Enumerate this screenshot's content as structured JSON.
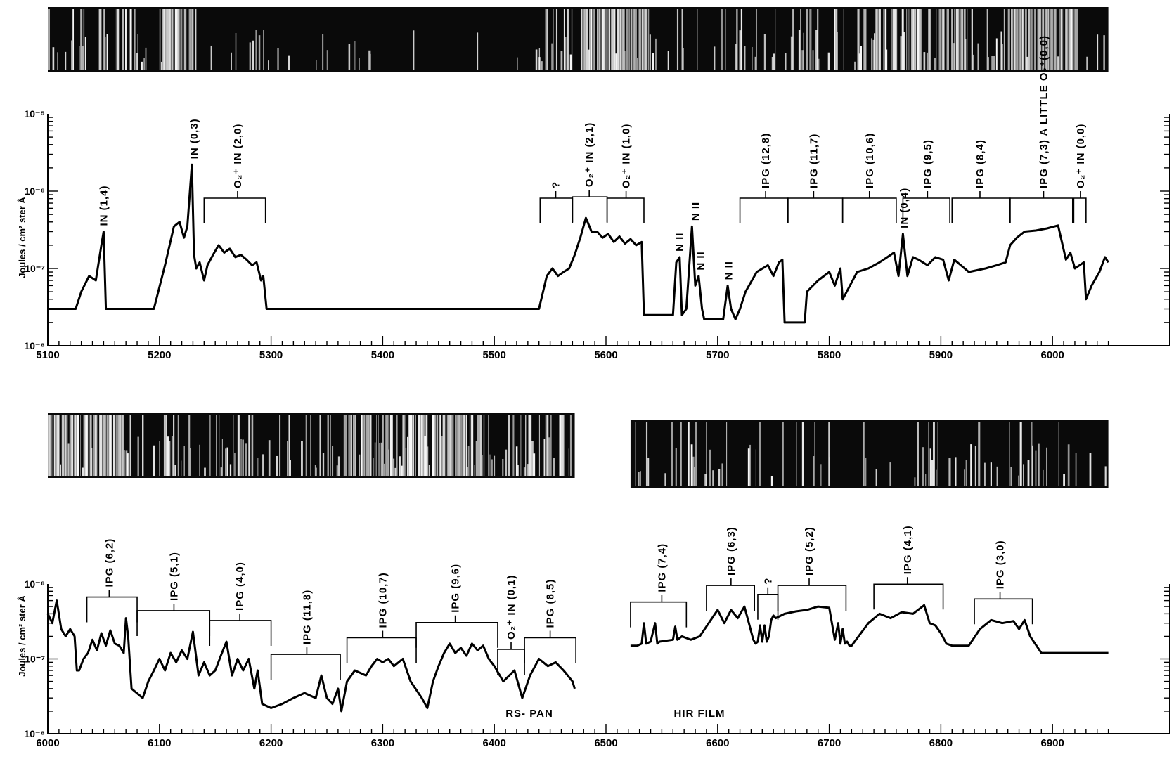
{
  "chart_data": [
    {
      "type": "line",
      "scale": "log",
      "ylabel": "Joules / cm² ster Å",
      "ylim": [
        1e-08,
        1e-05
      ],
      "xlim": [
        5100,
        6050
      ],
      "x_ticks": [
        5100,
        5200,
        5300,
        5400,
        5500,
        5600,
        5700,
        5800,
        5900,
        6000
      ],
      "y_ticks": [
        {
          "v": 1e-05,
          "label": "10⁻⁵"
        },
        {
          "v": 1e-06,
          "label": "10⁻⁶"
        },
        {
          "v": 1e-07,
          "label": "10⁻⁷"
        },
        {
          "v": 1e-08,
          "label": "10⁻⁸"
        }
      ],
      "series": [
        {
          "x": [
            5100,
            5125,
            5130,
            5137,
            5143,
            5148,
            5150,
            5152,
            5195,
            5205,
            5213,
            5218,
            5222,
            5225,
            5229,
            5231,
            5233,
            5236,
            5240,
            5243,
            5248,
            5253,
            5258,
            5263,
            5268,
            5273,
            5278,
            5283,
            5287,
            5291,
            5293,
            5296,
            5540,
            5547,
            5552,
            5557,
            5562,
            5567,
            5572,
            5577,
            5582,
            5587,
            5592,
            5597,
            5602,
            5607,
            5612,
            5617,
            5622,
            5627,
            5632,
            5634,
            5660,
            5663,
            5666,
            5668,
            5672,
            5677,
            5680,
            5683,
            5686,
            5688,
            5705,
            5709,
            5712,
            5716,
            5720,
            5725,
            5735,
            5745,
            5750,
            5755,
            5758,
            5760,
            5778,
            5780,
            5790,
            5800,
            5805,
            5810,
            5812,
            5825,
            5835,
            5845,
            5852,
            5858,
            5862,
            5866,
            5870,
            5875,
            5880,
            5888,
            5895,
            5902,
            5907,
            5912,
            5925,
            5940,
            5950,
            5958,
            5962,
            5968,
            5975,
            5985,
            5995,
            6005,
            6012,
            6016,
            6020,
            6028,
            6030,
            6035,
            6042,
            6047,
            6050
          ],
          "y": [
            3e-08,
            3e-08,
            5e-08,
            8e-08,
            7e-08,
            2e-07,
            3e-07,
            3e-08,
            3e-08,
            1.1e-07,
            3.5e-07,
            4e-07,
            2.5e-07,
            3.5e-07,
            2.2e-06,
            1.5e-07,
            1e-07,
            1.2e-07,
            7e-08,
            1.1e-07,
            1.5e-07,
            2e-07,
            1.6e-07,
            1.8e-07,
            1.4e-07,
            1.5e-07,
            1.3e-07,
            1.1e-07,
            1.2e-07,
            7e-08,
            8e-08,
            3e-08,
            3e-08,
            8e-08,
            1e-07,
            8e-08,
            9e-08,
            1e-07,
            1.5e-07,
            2.5e-07,
            4.5e-07,
            3e-07,
            3e-07,
            2.5e-07,
            2.8e-07,
            2.2e-07,
            2.6e-07,
            2.1e-07,
            2.4e-07,
            2e-07,
            2.2e-07,
            2.5e-08,
            2.5e-08,
            1.2e-07,
            1.4e-07,
            2.5e-08,
            3e-08,
            3.5e-07,
            6e-08,
            8e-08,
            3e-08,
            2.2e-08,
            2.2e-08,
            6e-08,
            3e-08,
            2.2e-08,
            3e-08,
            5e-08,
            9e-08,
            1.1e-07,
            8e-08,
            1.2e-07,
            1.3e-07,
            2e-08,
            2e-08,
            5e-08,
            7e-08,
            9e-08,
            6e-08,
            1e-07,
            4e-08,
            9e-08,
            1e-07,
            1.2e-07,
            1.4e-07,
            1.6e-07,
            8e-08,
            2.8e-07,
            8e-08,
            1.4e-07,
            1.3e-07,
            1.1e-07,
            1.4e-07,
            1.3e-07,
            7e-08,
            1.3e-07,
            9e-08,
            1e-07,
            1.1e-07,
            1.2e-07,
            2e-07,
            2.5e-07,
            3e-07,
            3.1e-07,
            3.3e-07,
            3.6e-07,
            1.3e-07,
            1.6e-07,
            1e-07,
            1.2e-07,
            4e-08,
            6e-08,
            9e-08,
            1.4e-07,
            1.2e-07
          ]
        }
      ],
      "annotations": [
        {
          "x": 5150,
          "text": "IN (1,4)"
        },
        {
          "x": 5231,
          "text": "IN (0,3)"
        },
        {
          "x": 5270,
          "from": 5240,
          "to": 5295,
          "text": "O₂⁺ IN (2,0)"
        },
        {
          "x": 5555,
          "from": 5541,
          "to": 5570,
          "text": "?"
        },
        {
          "x": 5585,
          "from": 5570,
          "to": 5601,
          "text": "O₂⁺ IN (2,1)"
        },
        {
          "x": 5618,
          "from": 5601,
          "to": 5634,
          "text": "O₂⁺ IN (1,0)"
        },
        {
          "x": 5666,
          "text": "N II"
        },
        {
          "x": 5680,
          "text": "N II"
        },
        {
          "x": 5685,
          "text": "N II"
        },
        {
          "x": 5710,
          "text": "N II"
        },
        {
          "x": 5743,
          "from": 5720,
          "to": 5763,
          "text": "IPG (12,8)"
        },
        {
          "x": 5786,
          "from": 5763,
          "to": 5812,
          "text": "IPG (11,7)"
        },
        {
          "x": 5836,
          "from": 5812,
          "to": 5860,
          "text": "IPG (10,6)"
        },
        {
          "x": 5867,
          "text": "IN (0,4)"
        },
        {
          "x": 5888,
          "from": 5866,
          "to": 5908,
          "text": "IPG (9,5)"
        },
        {
          "x": 5935,
          "from": 5910,
          "to": 5962,
          "text": "IPG (8,4)"
        },
        {
          "x": 5992,
          "from": 5962,
          "to": 6018,
          "text": "IPG (7,3) A LITTLE O₂⁺(0,0)"
        },
        {
          "x": 6025,
          "from": 6019,
          "to": 6030,
          "text": "O₂⁺ IN (0,0)"
        }
      ]
    },
    {
      "type": "line",
      "scale": "log",
      "ylabel": "Joules / cm² ster Å",
      "ylim": [
        1e-08,
        1e-06
      ],
      "xlim": [
        6000,
        6950
      ],
      "x_ticks": [
        6000,
        6100,
        6200,
        6300,
        6400,
        6500,
        6600,
        6700,
        6800,
        6900
      ],
      "y_ticks": [
        {
          "v": 1e-06,
          "label": "10⁻⁶"
        },
        {
          "v": 1e-07,
          "label": "10⁻⁷"
        },
        {
          "v": 1e-08,
          "label": "10⁻⁸"
        }
      ],
      "series": [
        {
          "name": "RS-PAN",
          "x": [
            6000,
            6004,
            6008,
            6012,
            6016,
            6020,
            6024,
            6026,
            6028,
            6032,
            6036,
            6040,
            6044,
            6048,
            6052,
            6056,
            6060,
            6064,
            6068,
            6070,
            6072,
            6075,
            6085,
            6090,
            6095,
            6100,
            6105,
            6110,
            6115,
            6120,
            6125,
            6130,
            6135,
            6140,
            6145,
            6150,
            6155,
            6160,
            6165,
            6170,
            6175,
            6180,
            6185,
            6188,
            6192,
            6200,
            6210,
            6220,
            6230,
            6240,
            6245,
            6250,
            6255,
            6260,
            6263,
            6268,
            6275,
            6285,
            6290,
            6295,
            6300,
            6305,
            6310,
            6318,
            6325,
            6335,
            6340,
            6345,
            6350,
            6355,
            6360,
            6365,
            6370,
            6375,
            6380,
            6385,
            6390,
            6395,
            6400,
            6408,
            6418,
            6425,
            6432,
            6440,
            6448,
            6455,
            6462,
            6470,
            6472
          ],
          "y": [
            4e-07,
            3e-07,
            6e-07,
            2.5e-07,
            2e-07,
            2.5e-07,
            2e-07,
            7e-08,
            7e-08,
            1e-07,
            1.2e-07,
            1.8e-07,
            1.3e-07,
            2.2e-07,
            1.5e-07,
            2.4e-07,
            1.6e-07,
            1.5e-07,
            1.2e-07,
            3.5e-07,
            2e-07,
            4e-08,
            3e-08,
            5e-08,
            7e-08,
            1e-07,
            7e-08,
            1.2e-07,
            9e-08,
            1.3e-07,
            1e-07,
            2.3e-07,
            6e-08,
            9e-08,
            6e-08,
            7e-08,
            1.1e-07,
            1.7e-07,
            6e-08,
            1e-07,
            7e-08,
            1e-07,
            4e-08,
            7e-08,
            2.5e-08,
            2.2e-08,
            2.5e-08,
            3e-08,
            3.5e-08,
            3e-08,
            6e-08,
            3e-08,
            2.5e-08,
            4e-08,
            2e-08,
            5e-08,
            7e-08,
            6e-08,
            8e-08,
            1e-07,
            9e-08,
            1e-07,
            8e-08,
            1e-07,
            5e-08,
            3e-08,
            2.2e-08,
            5e-08,
            8e-08,
            1.2e-07,
            1.6e-07,
            1.2e-07,
            1.4e-07,
            1.1e-07,
            1.6e-07,
            1.3e-07,
            1.5e-07,
            1e-07,
            8e-08,
            5e-08,
            7e-08,
            3e-08,
            6e-08,
            1e-07,
            8e-08,
            9e-08,
            7e-08,
            5e-08,
            4e-08
          ]
        },
        {
          "name": "HIR FILM",
          "x": [
            6522,
            6528,
            6532,
            6534,
            6536,
            6540,
            6544,
            6546,
            6548,
            6560,
            6562,
            6564,
            6568,
            6576,
            6584,
            6592,
            6600,
            6606,
            6612,
            6618,
            6624,
            6628,
            6632,
            6634,
            6636,
            6638,
            6640,
            6642,
            6644,
            6646,
            6648,
            6650,
            6652,
            6660,
            6670,
            6680,
            6690,
            6700,
            6705,
            6708,
            6710,
            6712,
            6714,
            6716,
            6718,
            6720,
            6735,
            6745,
            6755,
            6765,
            6775,
            6785,
            6790,
            6795,
            6800,
            6805,
            6810,
            6825,
            6835,
            6845,
            6855,
            6865,
            6870,
            6875,
            6880,
            6890,
            6950
          ],
          "y": [
            1.5e-07,
            1.5e-07,
            1.6e-07,
            3e-07,
            1.6e-07,
            1.7e-07,
            3e-07,
            1.6e-07,
            1.7e-07,
            1.8e-07,
            2.7e-07,
            1.8e-07,
            2e-07,
            1.8e-07,
            2e-07,
            3e-07,
            4.5e-07,
            3e-07,
            4.5e-07,
            3.5e-07,
            5e-07,
            3e-07,
            1.8e-07,
            1.6e-07,
            1.7e-07,
            2.8e-07,
            1.7e-07,
            2.8e-07,
            1.7e-07,
            2e-07,
            3.3e-07,
            3.8e-07,
            3.5e-07,
            4e-07,
            4.3e-07,
            4.5e-07,
            5e-07,
            4.8e-07,
            1.8e-07,
            3e-07,
            1.6e-07,
            2.5e-07,
            1.6e-07,
            1.7e-07,
            1.5e-07,
            1.5e-07,
            3e-07,
            4e-07,
            3.5e-07,
            4.2e-07,
            4e-07,
            5.2e-07,
            3e-07,
            2.8e-07,
            2.2e-07,
            1.6e-07,
            1.5e-07,
            1.5e-07,
            2.5e-07,
            3.3e-07,
            3e-07,
            3.2e-07,
            2.5e-07,
            3.3e-07,
            2e-07,
            1.2e-07,
            1.2e-07
          ]
        }
      ],
      "annotations": [
        {
          "x": 6055,
          "from": 6035,
          "to": 6080,
          "text": "IPG (6,2)"
        },
        {
          "x": 6113,
          "from": 6080,
          "to": 6145,
          "text": "IPG (5,1)"
        },
        {
          "x": 6172,
          "from": 6145,
          "to": 6200,
          "text": "IPG (4,0)"
        },
        {
          "x": 6232,
          "from": 6200,
          "to": 6262,
          "text": "IPG (11,8)"
        },
        {
          "x": 6300,
          "from": 6268,
          "to": 6330,
          "text": "IPG (10,7)"
        },
        {
          "x": 6365,
          "from": 6330,
          "to": 6403,
          "text": "IPG (9,6)"
        },
        {
          "x": 6415,
          "from": 6403,
          "to": 6427,
          "text": "O₂⁺ IN (0,1)"
        },
        {
          "x": 6450,
          "from": 6427,
          "to": 6473,
          "text": "IPG (8,5)"
        },
        {
          "x": 6550,
          "from": 6522,
          "to": 6572,
          "text": "IPG (7,4)"
        },
        {
          "x": 6612,
          "from": 6590,
          "to": 6633,
          "text": "IPG (6,3)"
        },
        {
          "x": 6645,
          "from": 6636,
          "to": 6654,
          "text": "?"
        },
        {
          "x": 6682,
          "from": 6654,
          "to": 6715,
          "text": "IPG (5,2)"
        },
        {
          "x": 6770,
          "from": 6740,
          "to": 6802,
          "text": "IPG (4,1)"
        },
        {
          "x": 6853,
          "from": 6830,
          "to": 6882,
          "text": "IPG (3,0)"
        }
      ],
      "text_labels": [
        "RS- PAN",
        "HIR FILM"
      ]
    }
  ],
  "spectra": {
    "strips": [
      {
        "bright": [
          [
            5100,
            5190,
            0.45
          ],
          [
            5200,
            5232,
            0.95
          ],
          [
            5232,
            5300,
            0.35
          ],
          [
            5300,
            5540,
            0.08
          ],
          [
            5540,
            5570,
            0.6
          ],
          [
            5578,
            5640,
            0.95
          ],
          [
            5640,
            5700,
            0.3
          ],
          [
            5700,
            5760,
            0.35
          ],
          [
            5760,
            5840,
            0.5
          ],
          [
            5840,
            5930,
            0.75
          ],
          [
            5930,
            5960,
            0.55
          ],
          [
            5960,
            6022,
            0.95
          ],
          [
            6022,
            6050,
            0.3
          ]
        ]
      },
      {
        "bright": [
          [
            6000,
            6035,
            0.95
          ],
          [
            6035,
            6072,
            0.9
          ],
          [
            6072,
            6145,
            0.45
          ],
          [
            6145,
            6265,
            0.35
          ],
          [
            6265,
            6375,
            0.85
          ],
          [
            6375,
            6472,
            0.55
          ]
        ]
      },
      {
        "bright": [
          [
            6522,
            6580,
            0.3
          ],
          [
            6580,
            6700,
            0.25
          ],
          [
            6700,
            6800,
            0.2
          ],
          [
            6800,
            6950,
            0.25
          ]
        ]
      }
    ]
  }
}
